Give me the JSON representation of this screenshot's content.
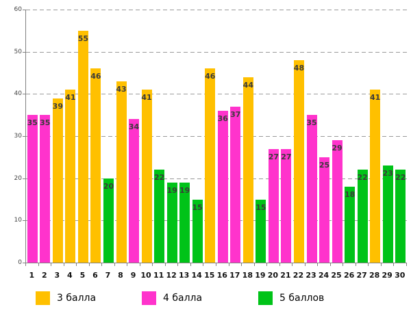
{
  "chart_data": {
    "type": "bar",
    "title": "",
    "xlabel": "",
    "ylabel": "",
    "ylim": [
      0,
      60
    ],
    "yticks": [
      0,
      10,
      20,
      30,
      40,
      50,
      60
    ],
    "grid": "dashed-horizontal",
    "legend_position": "bottom",
    "categories": [
      "1",
      "2",
      "3",
      "4",
      "5",
      "6",
      "7",
      "8",
      "9",
      "10",
      "11",
      "12",
      "13",
      "14",
      "15",
      "16",
      "17",
      "18",
      "19",
      "20",
      "21",
      "22",
      "23",
      "24",
      "25",
      "26",
      "27",
      "28",
      "29",
      "30"
    ],
    "bars": [
      {
        "x": "1",
        "value": 35,
        "group": "4 балла"
      },
      {
        "x": "2",
        "value": 35,
        "group": "4 балла"
      },
      {
        "x": "3",
        "value": 39,
        "group": "3 балла"
      },
      {
        "x": "4",
        "value": 41,
        "group": "3 балла"
      },
      {
        "x": "5",
        "value": 55,
        "group": "3 балла"
      },
      {
        "x": "6",
        "value": 46,
        "group": "3 балла"
      },
      {
        "x": "7",
        "value": 20,
        "group": "5 баллов"
      },
      {
        "x": "8",
        "value": 43,
        "group": "3 балла"
      },
      {
        "x": "9",
        "value": 34,
        "group": "4 балла"
      },
      {
        "x": "10",
        "value": 41,
        "group": "3 балла"
      },
      {
        "x": "11",
        "value": 22,
        "group": "5 баллов"
      },
      {
        "x": "12",
        "value": 19,
        "group": "5 баллов"
      },
      {
        "x": "13",
        "value": 19,
        "group": "5 баллов"
      },
      {
        "x": "14",
        "value": 15,
        "group": "5 баллов"
      },
      {
        "x": "15",
        "value": 46,
        "group": "3 балла"
      },
      {
        "x": "16",
        "value": 36,
        "group": "4 балла"
      },
      {
        "x": "17",
        "value": 37,
        "group": "4 балла"
      },
      {
        "x": "18",
        "value": 44,
        "group": "3 балла"
      },
      {
        "x": "19",
        "value": 15,
        "group": "5 баллов"
      },
      {
        "x": "20",
        "value": 27,
        "group": "4 балла"
      },
      {
        "x": "21",
        "value": 27,
        "group": "4 балла"
      },
      {
        "x": "22",
        "value": 48,
        "group": "3 балла"
      },
      {
        "x": "23",
        "value": 35,
        "group": "4 балла"
      },
      {
        "x": "24",
        "value": 25,
        "group": "4 балла"
      },
      {
        "x": "25",
        "value": 29,
        "group": "4 балла"
      },
      {
        "x": "26",
        "value": 18,
        "group": "5 баллов"
      },
      {
        "x": "27",
        "value": 22,
        "group": "5 баллов"
      },
      {
        "x": "28",
        "value": 41,
        "group": "3 балла"
      },
      {
        "x": "29",
        "value": 23,
        "group": "5 баллов"
      },
      {
        "x": "30",
        "value": 22,
        "group": "5 баллов"
      }
    ],
    "legend": [
      {
        "label": "3 балла",
        "color": "#FFC000"
      },
      {
        "label": "4 балла",
        "color": "#FF33CC"
      },
      {
        "label": "5 баллов",
        "color": "#00C318"
      }
    ],
    "colors": {
      "axis": "#808080",
      "gridline": "#999999",
      "bar_value_label": "#3a3a3a"
    }
  }
}
